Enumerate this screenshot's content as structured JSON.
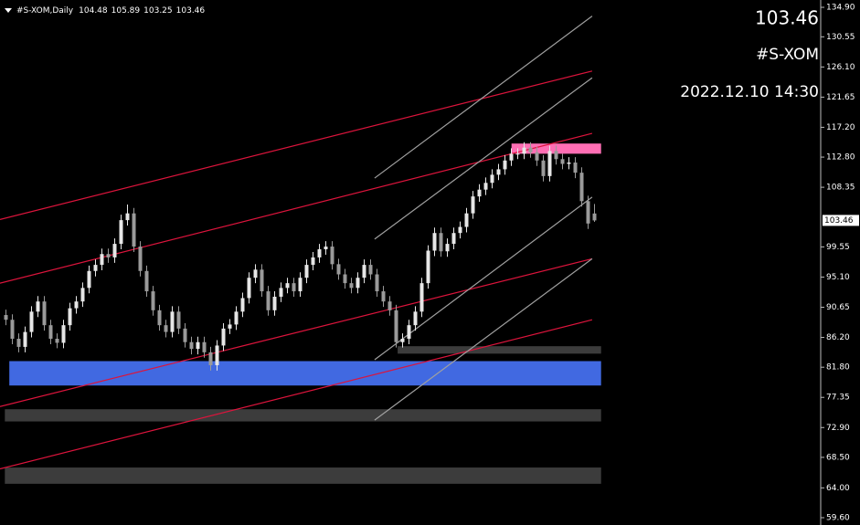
{
  "chart_data": {
    "type": "candlestick",
    "header_label": "#S-XOM,Daily",
    "symbol": "#S-XOM",
    "datetime": "2022.12.10 14:30",
    "up_color": "#e6e6e6",
    "down_color": "#9a9a9a",
    "background": "#000000",
    "price_color": "#e01010",
    "ylim": [
      58.52,
      135.98
    ],
    "yticks": [
      {
        "value": 134.9,
        "label": "134.90"
      },
      130.55,
      {
        "value": 126.1,
        "label": "126.10"
      },
      121.65,
      {
        "value": 117.2,
        "label": "117.20"
      },
      {
        "value": 112.8,
        "label": "112.80"
      },
      108.35,
      99.55,
      {
        "value": 95.1,
        "label": "95.10"
      },
      90.65,
      {
        "value": 86.2,
        "label": "86.20"
      },
      {
        "value": 81.8,
        "label": "81.80"
      },
      77.35,
      {
        "value": 72.9,
        "label": "72.90"
      },
      {
        "value": 68.5,
        "label": "68.50"
      },
      {
        "value": 64,
        "label": "64.00"
      },
      {
        "value": 59.6,
        "label": "59.60"
      }
    ],
    "ohlc": [
      [
        89.5,
        90.3,
        88.0,
        88.8
      ],
      [
        88.8,
        89.6,
        85.2,
        86
      ],
      [
        86,
        86.8,
        84.0,
        84.8
      ],
      [
        84.8,
        87.8,
        84.0,
        87
      ],
      [
        87,
        90.8,
        86.2,
        90
      ],
      [
        90,
        92.3,
        89.2,
        91.5
      ],
      [
        91.5,
        92.3,
        87.2,
        88
      ],
      [
        88,
        88.8,
        85.2,
        86
      ],
      [
        86,
        86.8,
        84.6,
        85.4
      ],
      [
        85.4,
        88.8,
        84.6,
        88
      ],
      [
        88,
        91.3,
        87.2,
        90.5
      ],
      [
        90.5,
        92.3,
        89.7,
        91.5
      ],
      [
        91.5,
        94.3,
        90.7,
        93.5
      ],
      [
        93.5,
        96.8,
        92.7,
        96
      ],
      [
        96,
        97.7,
        95.2,
        96.9
      ],
      [
        96.9,
        99.3,
        96.1,
        98.5
      ],
      [
        98.5,
        99.3,
        97.2,
        98
      ],
      [
        98,
        100.8,
        97.2,
        100
      ],
      [
        100,
        104.3,
        99.2,
        103.5
      ],
      [
        103.5,
        105.8,
        102.7,
        104.5
      ],
      [
        104.5,
        105.3,
        98.8,
        99.6
      ],
      [
        99.6,
        100.4,
        95.2,
        96
      ],
      [
        96,
        96.8,
        92.2,
        93
      ],
      [
        93,
        93.8,
        89.4,
        90.2
      ],
      [
        90.2,
        91,
        87.2,
        88
      ],
      [
        88,
        88.8,
        86.2,
        87
      ],
      [
        87,
        90.8,
        86.2,
        90
      ],
      [
        90,
        90.8,
        86.7,
        87.5
      ],
      [
        87.5,
        88.3,
        84.7,
        85.5
      ],
      [
        85.5,
        86.3,
        83.7,
        84.5
      ],
      [
        84.5,
        86.3,
        83.7,
        85.5
      ],
      [
        85.5,
        86.3,
        83.2,
        84
      ],
      [
        84,
        84.8,
        81.3,
        82.1
      ],
      [
        82.1,
        85.8,
        81.3,
        85
      ],
      [
        85,
        88.3,
        84.2,
        87.5
      ],
      [
        87.5,
        88.9,
        86.7,
        88.1
      ],
      [
        88.1,
        90.8,
        87.3,
        90
      ],
      [
        90,
        92.8,
        89.2,
        92
      ],
      [
        92,
        95.8,
        91.2,
        95
      ],
      [
        95,
        97,
        94.2,
        96.2
      ],
      [
        96.2,
        97,
        92.2,
        93
      ],
      [
        93,
        93.8,
        89.4,
        90.2
      ],
      [
        90.2,
        93,
        89.4,
        92.2
      ],
      [
        92.2,
        94.3,
        91.4,
        93.5
      ],
      [
        93.5,
        95,
        92.7,
        94.2
      ],
      [
        94.2,
        95,
        92.2,
        93
      ],
      [
        93,
        95.8,
        92.2,
        95
      ],
      [
        95,
        97.7,
        94.2,
        96.9
      ],
      [
        96.9,
        98.8,
        96.1,
        98
      ],
      [
        98,
        100,
        97.2,
        99.2
      ],
      [
        99.2,
        100.4,
        98.4,
        99.6
      ],
      [
        99.6,
        100.4,
        96.2,
        97
      ],
      [
        97,
        97.8,
        94.7,
        95.5
      ],
      [
        95.5,
        96.3,
        93.4,
        94.2
      ],
      [
        94.2,
        95,
        92.7,
        93.5
      ],
      [
        93.5,
        95.8,
        92.7,
        95
      ],
      [
        95,
        97.7,
        94.2,
        96.9
      ],
      [
        96.9,
        97.7,
        94.7,
        95.5
      ],
      [
        95.5,
        96.3,
        92.2,
        93
      ],
      [
        93,
        93.8,
        90.7,
        91.5
      ],
      [
        91.5,
        92.3,
        89.4,
        90.2
      ],
      [
        90.2,
        91,
        84.7,
        85.5
      ],
      [
        85.5,
        86.8,
        84.7,
        86
      ],
      [
        86,
        88.8,
        85.2,
        88
      ],
      [
        88,
        90.8,
        87.2,
        90
      ],
      [
        90,
        95,
        89.2,
        94.2
      ],
      [
        94.2,
        99.8,
        93.4,
        99
      ],
      [
        99,
        102.4,
        98.2,
        101.6
      ],
      [
        101.6,
        102.4,
        98.1,
        98.9
      ],
      [
        98.9,
        100.8,
        98.1,
        100
      ],
      [
        100,
        102.4,
        99.2,
        101.6
      ],
      [
        101.6,
        103.3,
        100.8,
        102.5
      ],
      [
        102.5,
        105.3,
        101.7,
        104.5
      ],
      [
        104.5,
        107.8,
        103.7,
        107
      ],
      [
        107,
        108.8,
        106.2,
        108
      ],
      [
        108,
        109.8,
        107.2,
        109
      ],
      [
        109,
        111,
        108.2,
        110.2
      ],
      [
        110.2,
        111.8,
        109.4,
        111
      ],
      [
        111,
        113.1,
        110.2,
        112.3
      ],
      [
        112.3,
        114.1,
        111.5,
        113.3
      ],
      [
        113.3,
        114.1,
        112.5,
        113.3
      ],
      [
        113.3,
        115,
        112.5,
        114.2
      ],
      [
        114.2,
        115,
        112.7,
        113.5
      ],
      [
        113.5,
        114.3,
        111.5,
        112.3
      ],
      [
        112.3,
        113.1,
        109.2,
        110
      ],
      [
        110,
        114.5,
        109.2,
        113.7
      ],
      [
        113.7,
        114.5,
        111.7,
        112.5
      ],
      [
        112.5,
        113.3,
        111,
        111.8
      ],
      [
        111.8,
        112.8,
        111,
        112
      ],
      [
        112,
        112.8,
        109.7,
        110.5
      ],
      [
        110.5,
        111.3,
        105.5,
        106.3
      ],
      [
        106.3,
        107.1,
        102.2,
        103
      ],
      [
        104.48,
        105.89,
        103.25,
        103.46
      ]
    ],
    "trendlines": [
      {
        "color": "#dc143c",
        "x": [
          -0.86,
          91.7
        ],
        "price": [
          103.6,
          125.5
        ]
      },
      {
        "color": "#dc143c",
        "x": [
          -0.86,
          91.7
        ],
        "price": [
          94.2,
          116.3
        ]
      },
      {
        "color": "#dc143c",
        "x": [
          -0.86,
          91.7
        ],
        "price": [
          76.0,
          97.8
        ]
      },
      {
        "color": "#dc143c",
        "x": [
          -0.86,
          91.7
        ],
        "price": [
          66.8,
          88.8
        ]
      },
      {
        "color": "#a0a0a0",
        "x": [
          57.7,
          91.7
        ],
        "price": [
          109.7,
          133.6
        ]
      },
      {
        "color": "#a0a0a0",
        "x": [
          57.7,
          91.7
        ],
        "price": [
          100.7,
          124.5
        ]
      },
      {
        "color": "#a0a0a0",
        "x": [
          57.7,
          91.7
        ],
        "price": [
          82.9,
          106.9
        ]
      },
      {
        "color": "#a0a0a0",
        "x": [
          57.7,
          91.7
        ],
        "price": [
          74.0,
          97.8
        ]
      }
    ],
    "zones": [
      {
        "color": "#ff6eb4",
        "x": [
          79.1,
          93.1
        ],
        "price": [
          114.8,
          113.3
        ]
      },
      {
        "color": "#4169e1",
        "x": [
          0.6,
          93.1
        ],
        "price": [
          82.7,
          79.1
        ]
      },
      {
        "color": "#3c3c3c",
        "x": [
          61.3,
          93.1
        ],
        "price": [
          84.9,
          83.8
        ]
      },
      {
        "color": "#3c3c3c",
        "x": [
          -0.1,
          93.1
        ],
        "price": [
          75.6,
          73.8
        ]
      },
      {
        "color": "#3c3c3c",
        "x": [
          -0.1,
          93.1
        ],
        "price": [
          67.0,
          64.6
        ]
      }
    ]
  }
}
